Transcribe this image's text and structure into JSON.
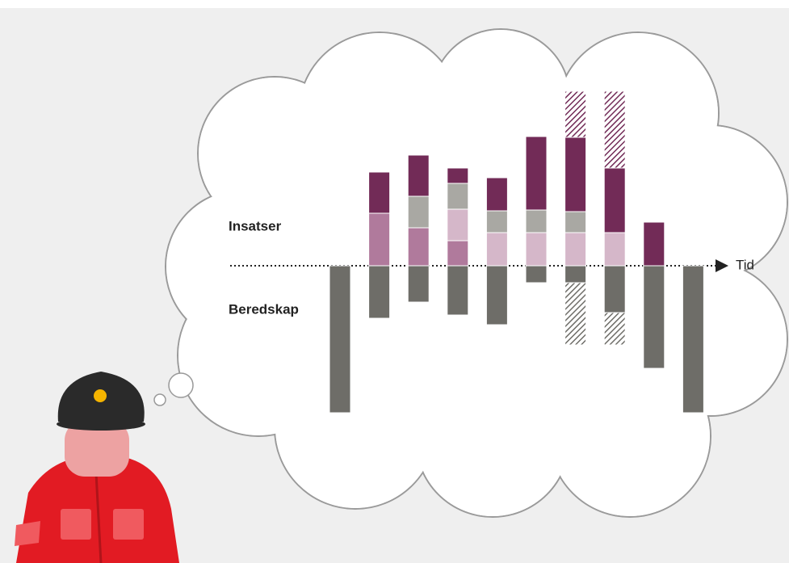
{
  "chart_data": {
    "type": "bar",
    "stacked": true,
    "xlabel": "Tid",
    "annotations": [
      "Insatser",
      "Beredskap"
    ],
    "categories": [
      null,
      null,
      null,
      null,
      null,
      null,
      null,
      null,
      null,
      null
    ],
    "series": [
      {
        "color": "#b07a9c",
        "hatch": false,
        "values": [
          null,
          65,
          47,
          31,
          null,
          null,
          null,
          null,
          null,
          null
        ]
      },
      {
        "color": "#d5b7c9",
        "hatch": false,
        "values": [
          null,
          null,
          null,
          39,
          41,
          41,
          41,
          41,
          null,
          null
        ]
      },
      {
        "color": "#a9a8a3",
        "hatch": false,
        "values": [
          null,
          null,
          39,
          32,
          27,
          28,
          26,
          null,
          null,
          null
        ]
      },
      {
        "color": "#722b57",
        "hatch": false,
        "values": [
          null,
          51,
          51,
          19,
          41,
          91,
          92,
          80,
          54,
          null
        ]
      },
      {
        "color": "#722b57",
        "hatch": true,
        "values": [
          null,
          null,
          null,
          null,
          null,
          null,
          57,
          95,
          null,
          null
        ]
      },
      {
        "color": "#6e6d68",
        "hatch": false,
        "values": [
          -182,
          -65,
          -45,
          -61,
          -73,
          -21,
          -21,
          -58,
          -127,
          -182
        ]
      },
      {
        "color": "#6e6d68",
        "hatch": true,
        "values": [
          null,
          null,
          null,
          null,
          null,
          null,
          -77,
          -40,
          null,
          null
        ]
      }
    ]
  }
}
